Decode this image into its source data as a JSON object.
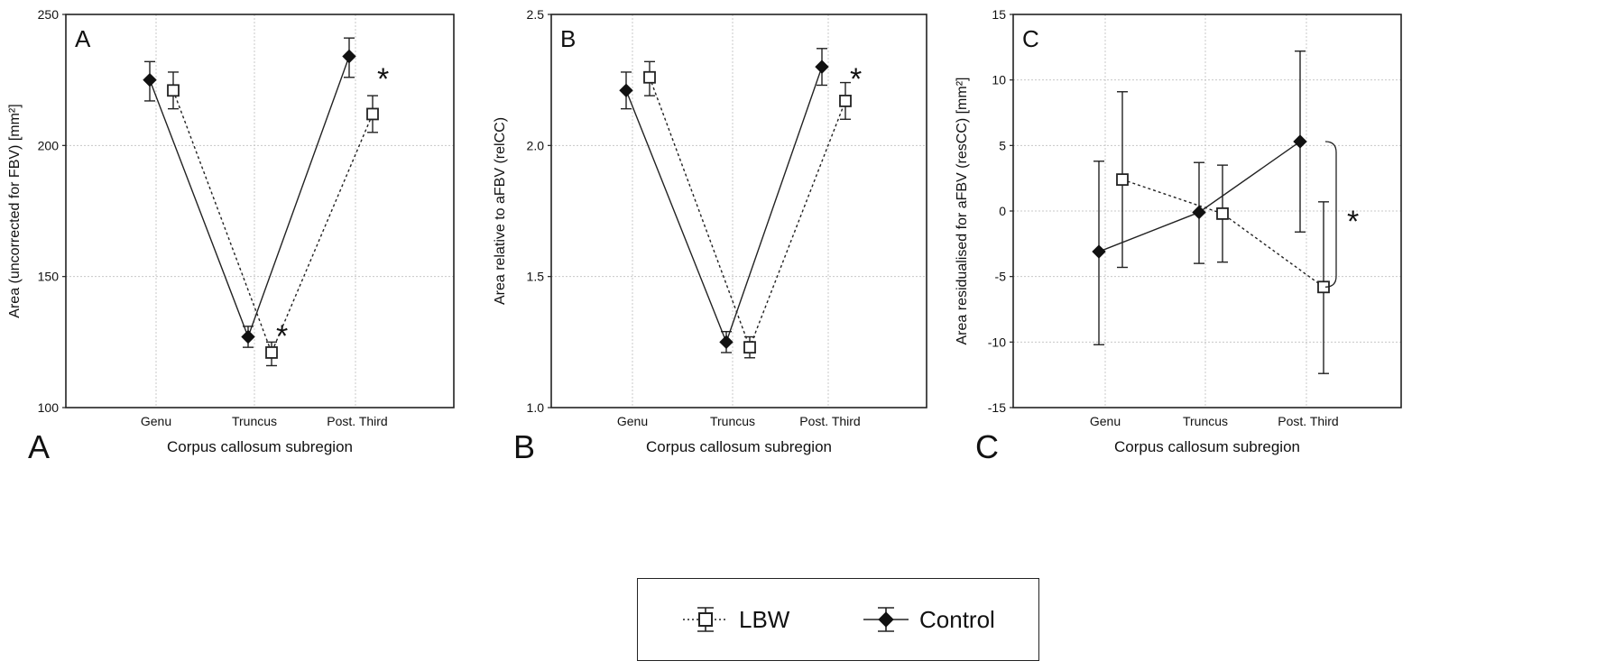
{
  "figure": {
    "subregion_xlabel": "Corpus callosum subregion",
    "significance_marker": "*"
  },
  "legend": {
    "items": [
      {
        "label": "LBW",
        "marker": "open-square",
        "line": "dotted",
        "color": "#222222"
      },
      {
        "label": "Control",
        "marker": "filled-diamond",
        "line": "solid",
        "color": "#222222"
      }
    ]
  },
  "chart_data": [
    {
      "type": "line",
      "panel_letter": "A",
      "panel_tag": "A",
      "xlabel": "Corpus callosum subregion",
      "ylabel": "Area (uncorrected for FBV) [mm²]",
      "categories": [
        "Genu",
        "Truncus",
        "Post. Third"
      ],
      "ylim": [
        100,
        250
      ],
      "yticks": [
        100,
        150,
        200,
        250
      ],
      "ytick_labels": [
        "100",
        "150",
        "200",
        "250"
      ],
      "grid": true,
      "series": [
        {
          "name": "Control",
          "values": [
            225,
            127,
            234
          ],
          "err_low": [
            217,
            123,
            226
          ],
          "err_high": [
            232,
            131,
            241
          ]
        },
        {
          "name": "LBW",
          "values": [
            221,
            121,
            212
          ],
          "err_low": [
            214,
            116,
            205
          ],
          "err_high": [
            228,
            125,
            219
          ]
        }
      ],
      "annotations": [
        {
          "text": "*",
          "category": "Truncus",
          "y": 131
        },
        {
          "text": "*",
          "category": "Post. Third",
          "y": 229
        }
      ]
    },
    {
      "type": "line",
      "panel_letter": "B",
      "panel_tag": "B",
      "xlabel": "Corpus callosum subregion",
      "ylabel": "Area relative to aFBV (relCC)",
      "categories": [
        "Genu",
        "Truncus",
        "Post. Third"
      ],
      "ylim": [
        1.0,
        2.5
      ],
      "yticks": [
        1.0,
        1.5,
        2.0,
        2.5
      ],
      "ytick_labels": [
        "1.0",
        "1.5",
        "2.0",
        "2.5"
      ],
      "grid": true,
      "series": [
        {
          "name": "Control",
          "values": [
            2.21,
            1.25,
            2.3
          ],
          "err_low": [
            2.14,
            1.21,
            2.23
          ],
          "err_high": [
            2.28,
            1.29,
            2.37
          ]
        },
        {
          "name": "LBW",
          "values": [
            2.26,
            1.23,
            2.17
          ],
          "err_low": [
            2.19,
            1.19,
            2.1
          ],
          "err_high": [
            2.32,
            1.27,
            2.24
          ]
        }
      ],
      "annotations": [
        {
          "text": "*",
          "category": "Post. Third",
          "y": 2.29
        }
      ]
    },
    {
      "type": "line",
      "panel_letter": "C",
      "panel_tag": "C",
      "xlabel": "Corpus callosum subregion",
      "ylabel": "Area residualised for aFBV (resCC) [mm²]",
      "categories": [
        "Genu",
        "Truncus",
        "Post. Third"
      ],
      "ylim": [
        -15,
        15
      ],
      "yticks": [
        -15,
        -10,
        -5,
        0,
        5,
        10,
        15
      ],
      "ytick_labels": [
        "-15",
        "-10",
        "-5",
        "0",
        "5",
        "10",
        "15"
      ],
      "grid": true,
      "series": [
        {
          "name": "Control",
          "values": [
            -3.1,
            -0.1,
            5.3
          ],
          "err_low": [
            -10.2,
            -4.0,
            -1.6
          ],
          "err_high": [
            3.8,
            3.7,
            12.2
          ]
        },
        {
          "name": "LBW",
          "values": [
            2.4,
            -0.2,
            -5.8
          ],
          "err_low": [
            -4.3,
            -3.9,
            -12.4
          ],
          "err_high": [
            9.1,
            3.5,
            0.7
          ]
        }
      ],
      "annotations": [
        {
          "text": "*",
          "y": 0.2,
          "note": "bracket between Post. Third groups"
        }
      ]
    }
  ]
}
